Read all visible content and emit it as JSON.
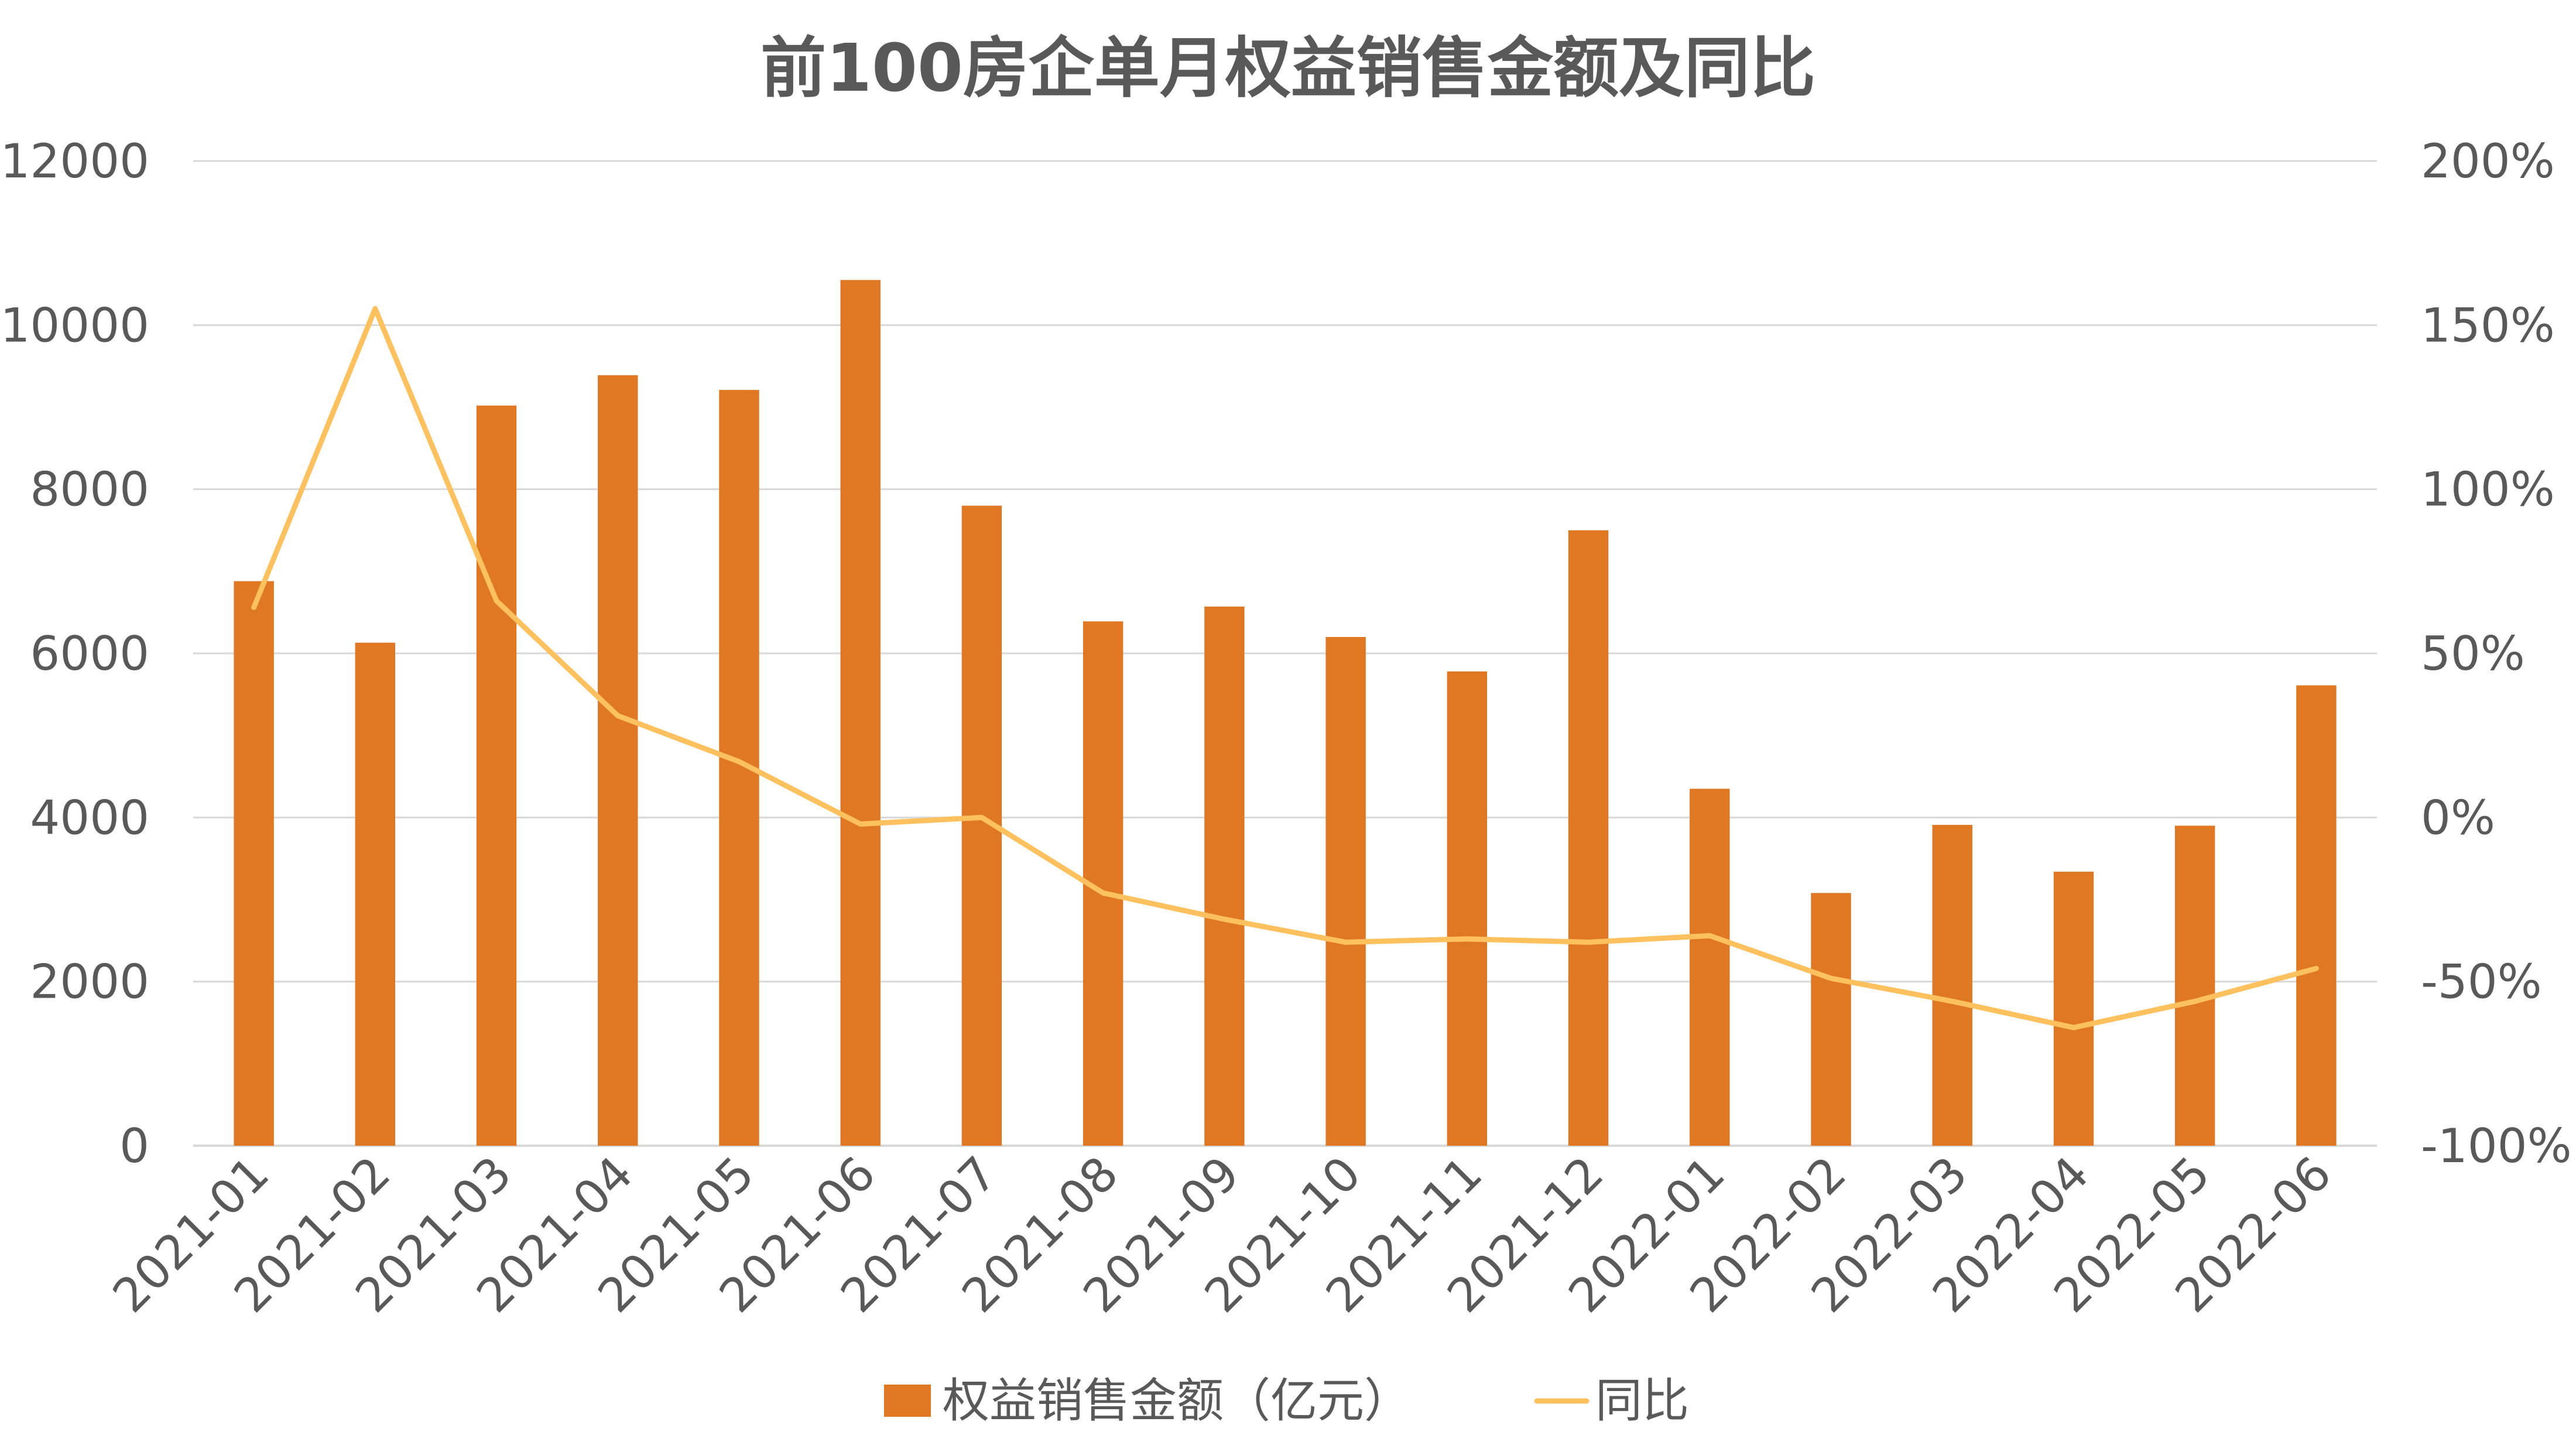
{
  "chart_data": {
    "type": "bar",
    "title": "前100房企单月权益销售金额及同比",
    "categories": [
      "2021-01",
      "2021-02",
      "2021-03",
      "2021-04",
      "2021-05",
      "2021-06",
      "2021-07",
      "2021-08",
      "2021-09",
      "2021-10",
      "2021-11",
      "2021-12",
      "2022-01",
      "2022-02",
      "2022-03",
      "2022-04",
      "2022-05",
      "2022-06"
    ],
    "series": [
      {
        "name": "权益销售金额（亿元）",
        "type": "bar",
        "axis": "left",
        "color": "#E07722",
        "values": [
          6880,
          6130,
          9020,
          9390,
          9210,
          10550,
          7800,
          6390,
          6570,
          6200,
          5780,
          7500,
          4350,
          3080,
          3910,
          3340,
          3900,
          5610
        ]
      },
      {
        "name": "同比",
        "type": "line",
        "axis": "right",
        "color": "#FFC15E",
        "values": [
          0.64,
          1.55,
          0.66,
          0.31,
          0.17,
          -0.02,
          0.0,
          -0.23,
          -0.31,
          -0.38,
          -0.37,
          -0.38,
          -0.36,
          -0.49,
          -0.56,
          -0.64,
          -0.56,
          -0.46
        ]
      }
    ],
    "y_left": {
      "ylim": [
        0,
        12000
      ],
      "ticks": [
        0,
        2000,
        4000,
        6000,
        8000,
        10000,
        12000
      ]
    },
    "y_right": {
      "ylim": [
        -1.0,
        2.0
      ],
      "ticks": [
        "-100%",
        "-50%",
        "0%",
        "50%",
        "100%",
        "150%",
        "200%"
      ]
    },
    "grid": true,
    "legend_position": "bottom"
  }
}
